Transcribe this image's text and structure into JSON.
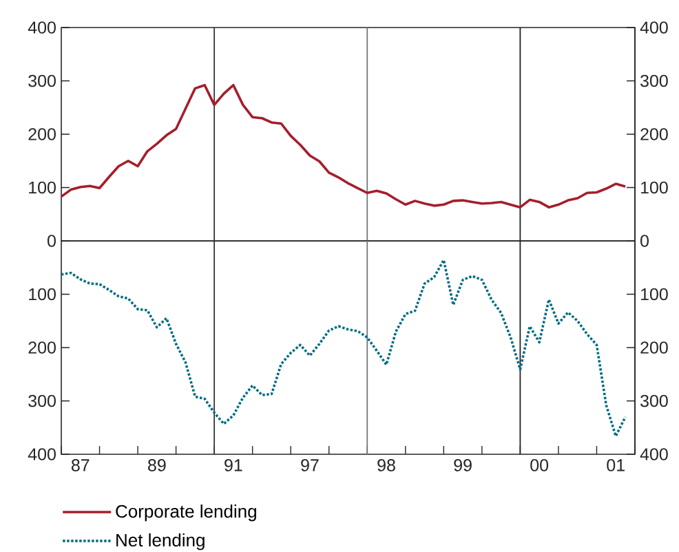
{
  "chart_data": [
    {
      "type": "line",
      "categories": [
        null,
        null,
        "87",
        null,
        null,
        null,
        null,
        null,
        null,
        null,
        "89",
        null,
        null,
        null,
        null,
        null,
        null,
        null,
        "91",
        null,
        null,
        null,
        null,
        null,
        null,
        null,
        "97",
        null,
        null,
        null,
        null,
        null,
        null,
        null,
        "98",
        null,
        null,
        null,
        null,
        null,
        null,
        null,
        "99",
        null,
        null,
        null,
        null,
        null,
        null,
        null,
        "00",
        null,
        null,
        null,
        null,
        null,
        null,
        null,
        "01",
        null
      ],
      "ylim": [
        0,
        400
      ],
      "yticks": [
        0,
        100,
        200,
        300,
        400
      ],
      "y2lim": [
        0,
        400
      ],
      "y2ticks": [
        0,
        100,
        200,
        300,
        400
      ],
      "tick_labels": "y",
      "legend": "bottom",
      "series": [
        {
          "name": "Corporate lending",
          "color": "#a51e2d",
          "line_style": "solid",
          "values": [
            83,
            96,
            101,
            103,
            99,
            120,
            140,
            150,
            140,
            168,
            182,
            198,
            210,
            248,
            286,
            292,
            255,
            276,
            292,
            255,
            232,
            230,
            222,
            220,
            197,
            180,
            160,
            149,
            128,
            119,
            108,
            99,
            90,
            94,
            89,
            78,
            68,
            75,
            70,
            66,
            68,
            75,
            76,
            73,
            70,
            71,
            73,
            68,
            63,
            77,
            73,
            63,
            68,
            76,
            80,
            90,
            91,
            98,
            107,
            102
          ]
        }
      ]
    },
    {
      "type": "line",
      "categories": [
        null,
        null,
        "87",
        null,
        null,
        null,
        null,
        null,
        null,
        null,
        "89",
        null,
        null,
        null,
        null,
        null,
        null,
        null,
        "91",
        null,
        null,
        null,
        null,
        null,
        null,
        null,
        "97",
        null,
        null,
        null,
        null,
        null,
        null,
        null,
        "98",
        null,
        null,
        null,
        null,
        null,
        null,
        null,
        "99",
        null,
        null,
        null,
        null,
        null,
        null,
        null,
        "00",
        null,
        null,
        null,
        null,
        null,
        null,
        null,
        "01",
        null
      ],
      "ylim": [
        400,
        0
      ],
      "yticks": [
        100,
        200,
        300,
        400
      ],
      "y2lim": [
        400,
        0
      ],
      "y2ticks": [
        100,
        200,
        300,
        400
      ],
      "legend": "bottom",
      "series": [
        {
          "name": "Net lending",
          "color": "#006d84",
          "line_style": "dotted",
          "values": [
            63,
            60,
            72,
            80,
            81,
            92,
            104,
            108,
            128,
            130,
            162,
            145,
            193,
            228,
            292,
            296,
            322,
            343,
            327,
            294,
            271,
            289,
            287,
            231,
            210,
            195,
            215,
            193,
            168,
            160,
            166,
            169,
            181,
            206,
            232,
            170,
            137,
            131,
            80,
            68,
            36,
            120,
            73,
            66,
            73,
            110,
            135,
            181,
            241,
            160,
            190,
            110,
            155,
            134,
            150,
            175,
            195,
            308,
            366,
            330
          ]
        }
      ]
    }
  ]
}
